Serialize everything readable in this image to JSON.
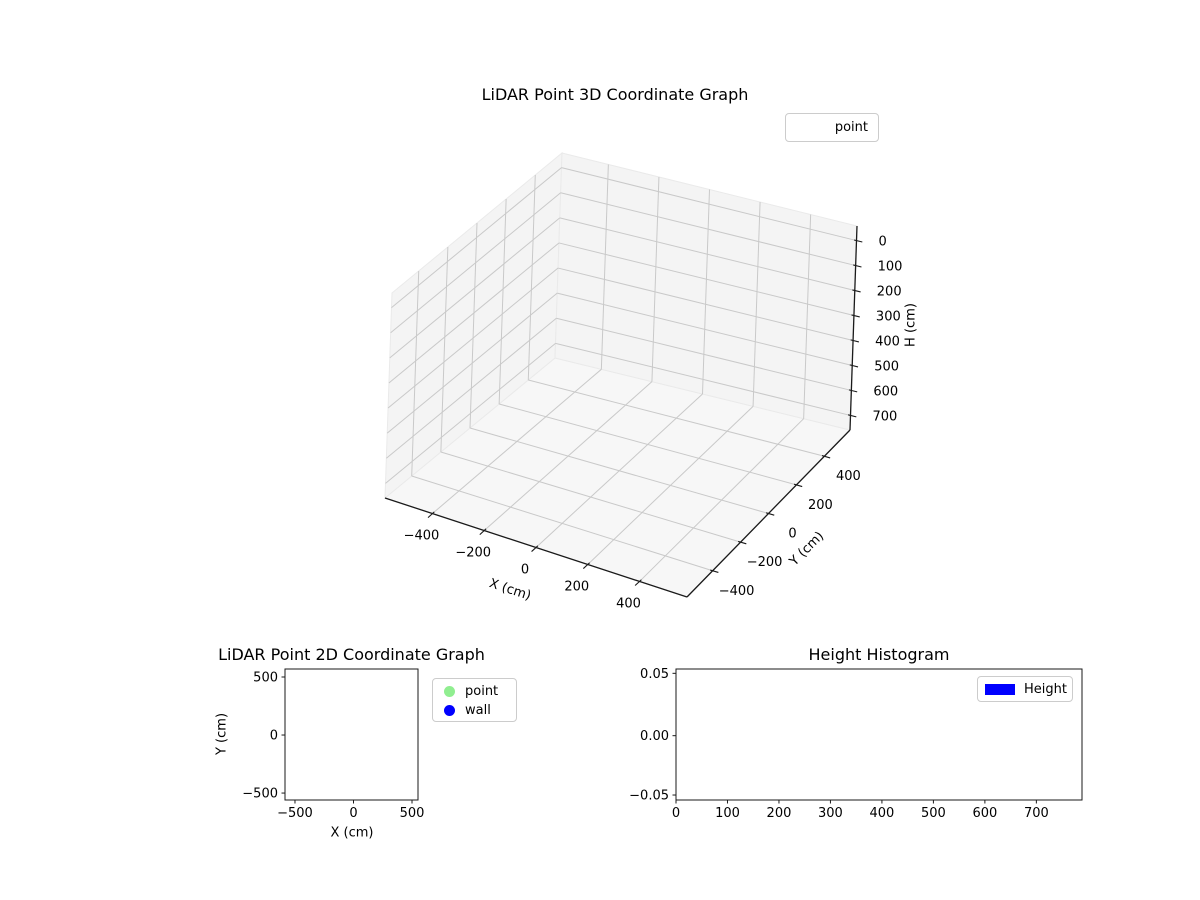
{
  "figure": {
    "background": "#ffffff"
  },
  "chart_data": [
    {
      "type": "scatter",
      "projection": "3d",
      "title": "LiDAR Point 3D Coordinate Graph",
      "xlabel": "X (cm)",
      "ylabel": "Y (cm)",
      "zlabel": "H (cm)",
      "xlim": [
        -500,
        500
      ],
      "ylim": [
        -500,
        500
      ],
      "zlim": [
        0,
        700
      ],
      "zaxis_inverted": true,
      "xticks": [
        -400,
        -200,
        0,
        200,
        400
      ],
      "yticks": [
        -400,
        -200,
        0,
        200,
        400
      ],
      "zticks": [
        0,
        100,
        200,
        300,
        400,
        500,
        600,
        700
      ],
      "grid": true,
      "legend_position": "upper right",
      "series": [
        {
          "name": "point",
          "points": []
        }
      ]
    },
    {
      "type": "scatter",
      "title": "LiDAR Point 2D Coordinate Graph",
      "xlabel": "X (cm)",
      "ylabel": "Y (cm)",
      "xticks": [
        -500,
        0,
        500
      ],
      "yticks": [
        -500,
        0,
        500
      ],
      "grid": false,
      "legend_position": "outside upper right",
      "series": [
        {
          "name": "point",
          "color": "#90ee90",
          "points": []
        },
        {
          "name": "wall",
          "color": "#0000ff",
          "points": []
        }
      ]
    },
    {
      "type": "bar",
      "subtype": "histogram",
      "title": "Height Histogram",
      "xlabel": "",
      "ylabel": "",
      "xticks": [
        0,
        100,
        200,
        300,
        400,
        500,
        600,
        700
      ],
      "yticks": [
        -0.05,
        0.0,
        0.05
      ],
      "ylim": [
        -0.055,
        0.054
      ],
      "grid": false,
      "legend_position": "upper right",
      "series": [
        {
          "name": "Height",
          "color": "#0000ff",
          "values": []
        }
      ]
    }
  ],
  "plot3d": {
    "title": "LiDAR Point 3D Coordinate Graph",
    "xlabel": "X (cm)",
    "ylabel": "Y (cm)",
    "zlabel": "H (cm)",
    "xtick_labels": [
      "−400",
      "−200",
      "0",
      "200",
      "400"
    ],
    "ytick_labels": [
      "−400",
      "−200",
      "0",
      "200",
      "400"
    ],
    "ztick_labels": [
      "0",
      "100",
      "200",
      "300",
      "400",
      "500",
      "600",
      "700"
    ],
    "legend": {
      "label": "point"
    }
  },
  "plot2d": {
    "title": "LiDAR Point 2D Coordinate Graph",
    "xlabel": "X (cm)",
    "ylabel": "Y (cm)",
    "xtick_labels": [
      "−500",
      "0",
      "500"
    ],
    "ytick_labels": [
      "500",
      "0",
      "−500"
    ],
    "legend": {
      "items": [
        {
          "label": "point",
          "color": "#90ee90"
        },
        {
          "label": "wall",
          "color": "#0000ff"
        }
      ]
    }
  },
  "hist": {
    "title": "Height Histogram",
    "xtick_labels": [
      "0",
      "100",
      "200",
      "300",
      "400",
      "500",
      "600",
      "700"
    ],
    "ytick_labels": [
      "0.05",
      "0.00",
      "−0.05"
    ],
    "legend": {
      "label": "Height",
      "color": "#0000ff"
    }
  },
  "colors": {
    "axis_line": "#1a1a1a",
    "grid_line": "#c9c9c9",
    "pane_wall": "#f4f4f4",
    "pane_floor": "#f7f7f7",
    "pane_edge": "#eaeaea",
    "legend_border": "#cccccc"
  }
}
